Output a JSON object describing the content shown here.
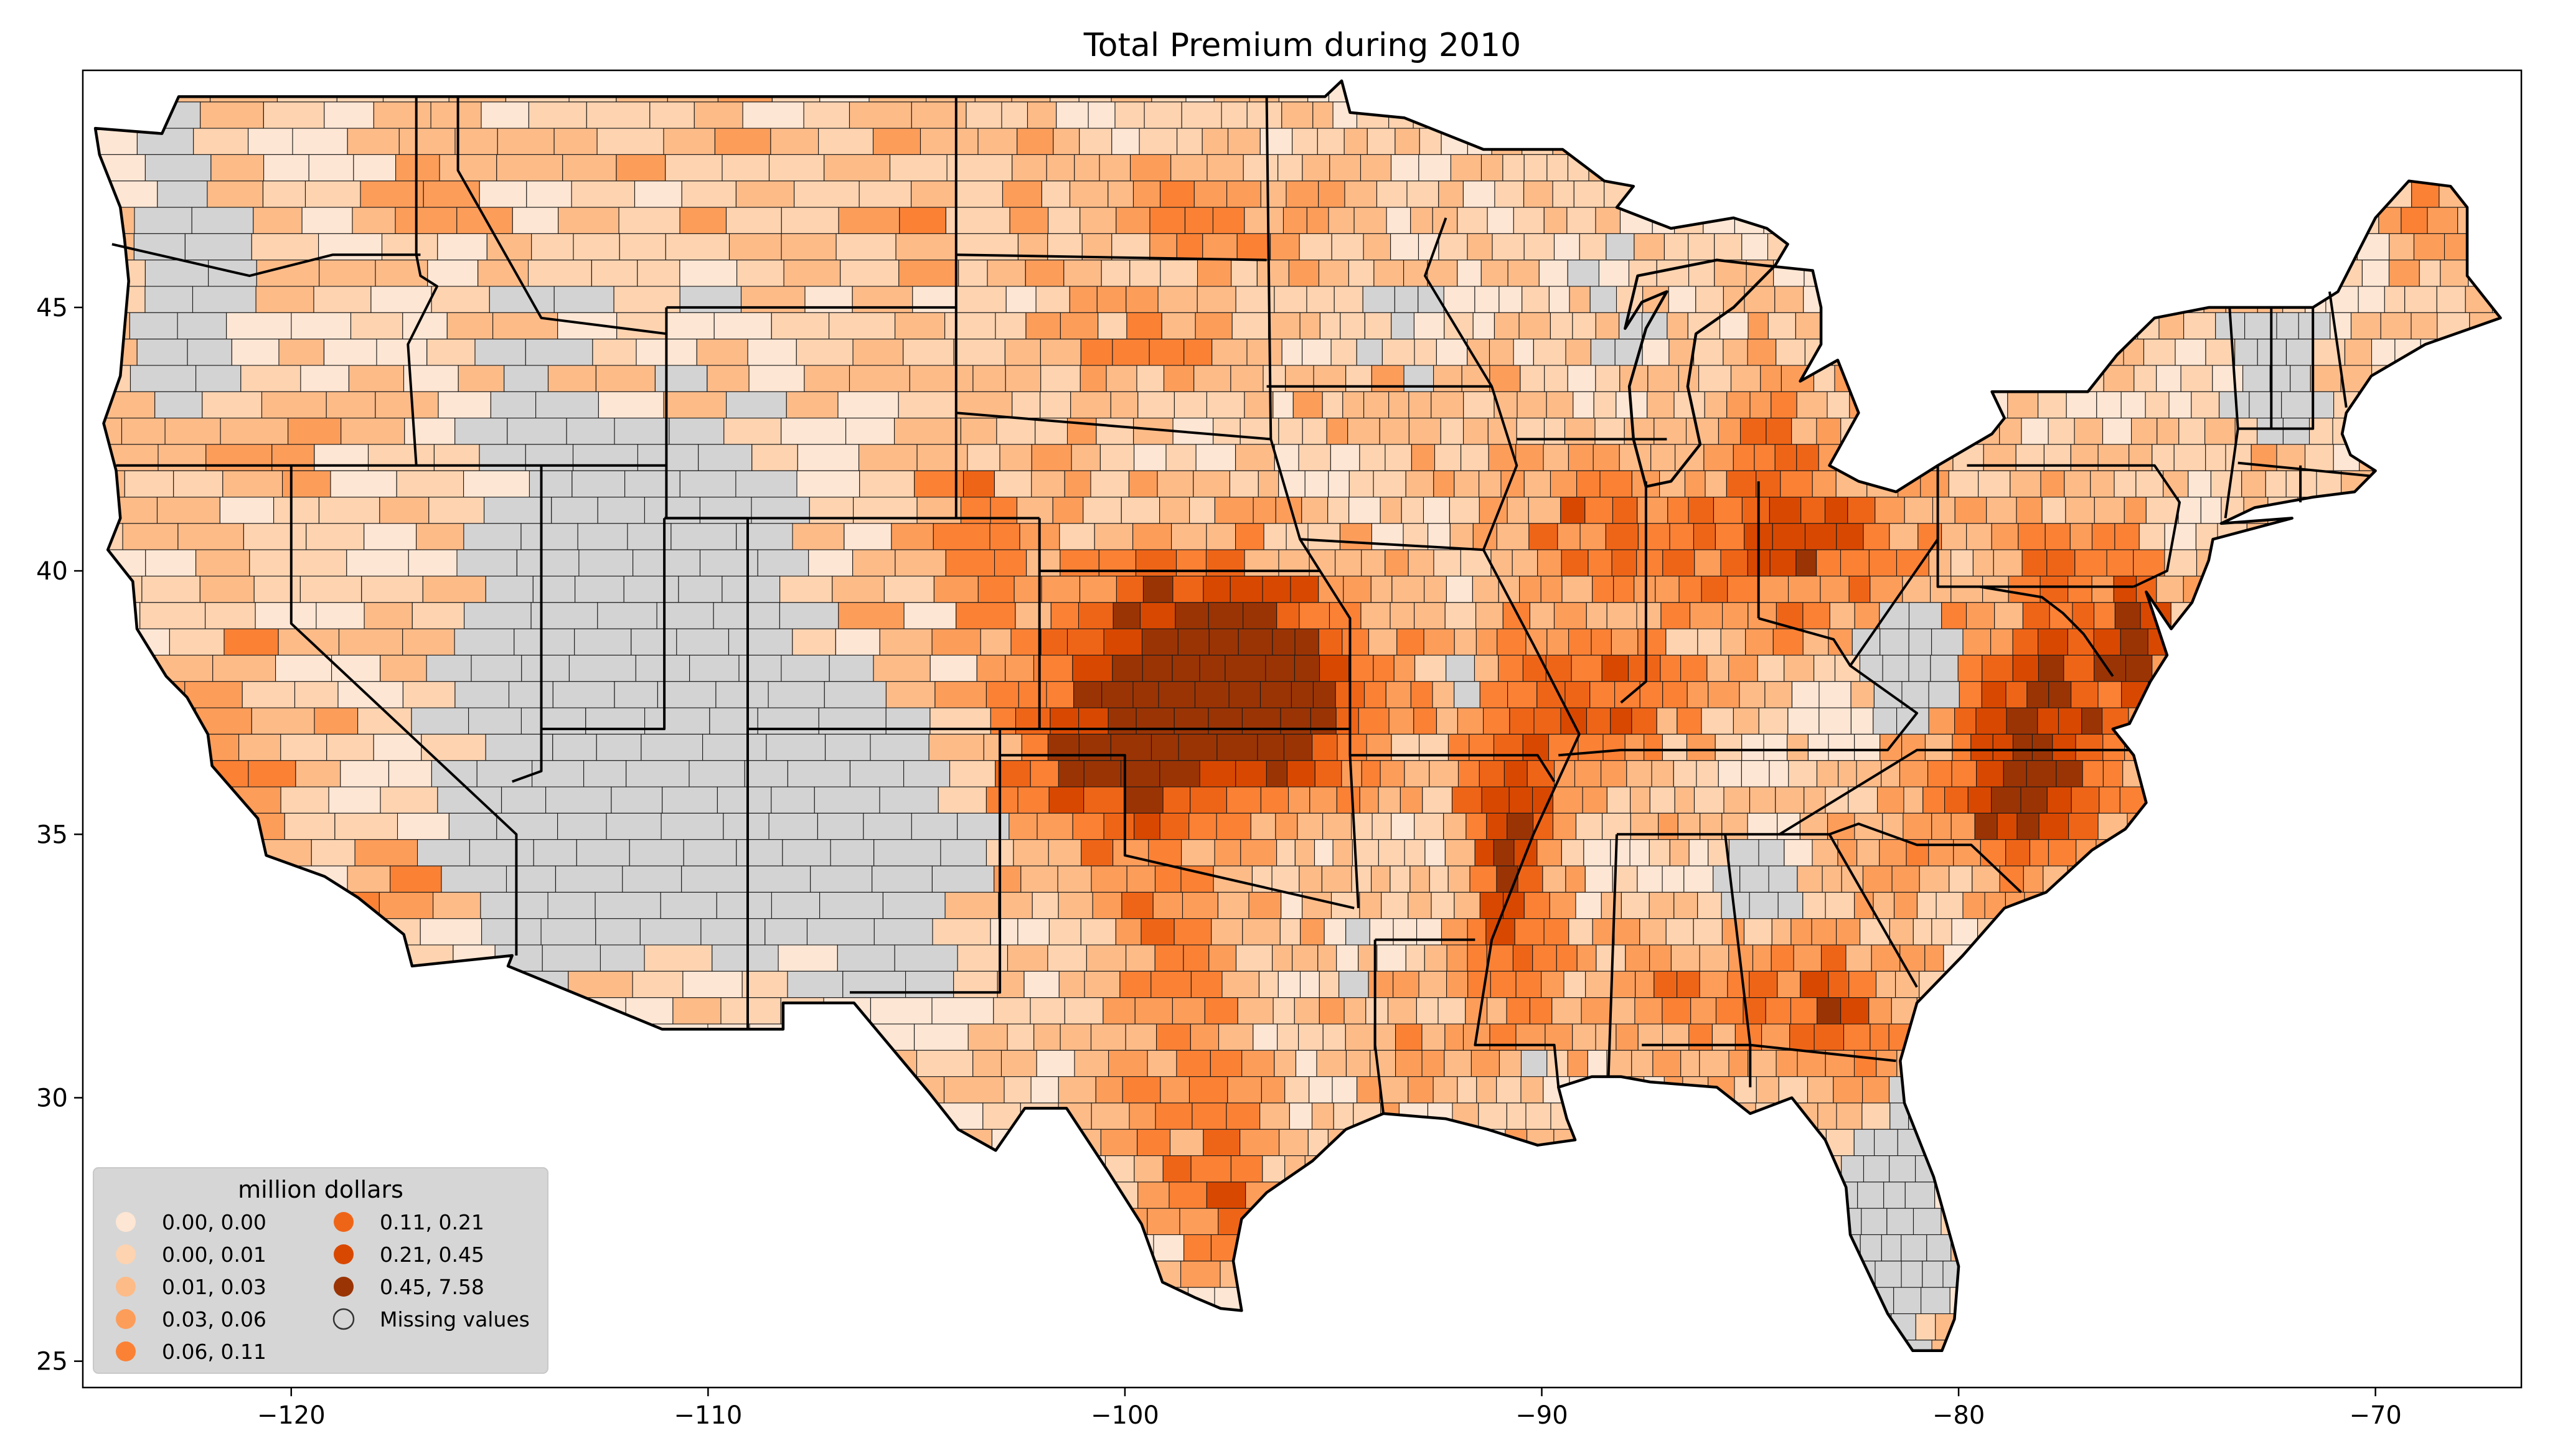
{
  "title": "Total  Premium during 2010",
  "map": {
    "type": "choropleth",
    "region": "Contiguous United States (counties)",
    "xlim": [
      -125,
      -66.5
    ],
    "ylim": [
      24.5,
      49.5
    ],
    "x_ticks": [
      -120,
      -110,
      -100,
      -90,
      -80,
      -70
    ],
    "y_ticks": [
      25,
      30,
      35,
      40,
      45
    ],
    "missing_color": "#d3d3d3",
    "border_color": "#000000"
  },
  "legend": {
    "title": "million dollars",
    "placement": "lower-left",
    "items": [
      {
        "label": "0.00, 0.00",
        "color": "#fee6d4"
      },
      {
        "label": "0.00, 0.01",
        "color": "#fdd3b0"
      },
      {
        "label": "0.01, 0.03",
        "color": "#fdbb88"
      },
      {
        "label": "0.03, 0.06",
        "color": "#fd9d5a"
      },
      {
        "label": "0.06, 0.11",
        "color": "#fb8135"
      },
      {
        "label": "0.11, 0.21",
        "color": "#ef6518"
      },
      {
        "label": "0.21, 0.45",
        "color": "#d94801"
      },
      {
        "label": "0.45, 7.58",
        "color": "#9a3405"
      },
      {
        "label": "Missing values",
        "color": "#d3d3d3"
      }
    ]
  }
}
